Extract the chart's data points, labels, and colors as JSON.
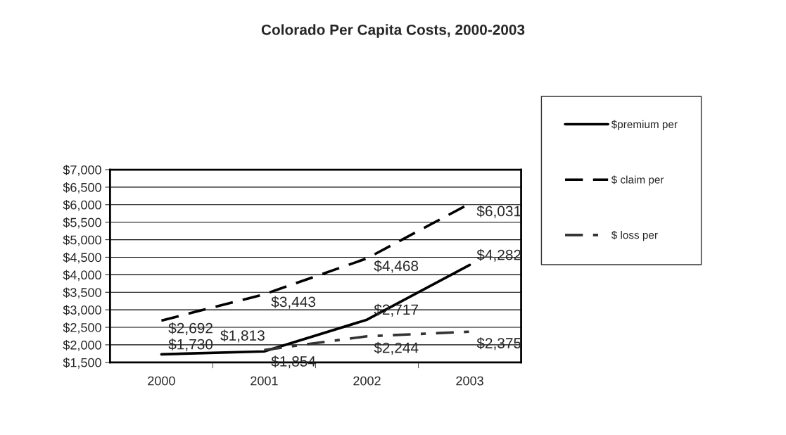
{
  "chart_data": {
    "type": "line",
    "title": "Colorado Per Capita Costs, 2000-2003",
    "categories": [
      "2000",
      "2001",
      "2002",
      "2003"
    ],
    "series": [
      {
        "name": "$premium per",
        "color": "#000000",
        "line_style": "solid",
        "values": [
          1730,
          1813,
          2717,
          4282
        ],
        "value_labels": [
          "$1,730",
          "$1,813",
          "$2,717",
          "$4,282"
        ]
      },
      {
        "name": "$ claim per",
        "color": "#000000",
        "line_style": "dashed",
        "values": [
          2692,
          3443,
          4468,
          6031
        ],
        "value_labels": [
          "$2,692",
          "$3,443",
          "$4,468",
          "$6,031"
        ]
      },
      {
        "name": "$ loss per",
        "color": "#333333",
        "line_style": "dotted",
        "values": [
          null,
          1854,
          2244,
          2375
        ],
        "value_labels": [
          null,
          "$1,854",
          "$2,244",
          "$2,375"
        ]
      }
    ],
    "ylim": [
      1500,
      7000
    ],
    "yticks": [
      {
        "value": 1500,
        "label": "$1,500"
      },
      {
        "value": 2000,
        "label": "$2,000"
      },
      {
        "value": 2500,
        "label": "$2,500"
      },
      {
        "value": 3000,
        "label": "$3,000"
      },
      {
        "value": 3500,
        "label": "$3,500"
      },
      {
        "value": 4000,
        "label": "$4,000"
      },
      {
        "value": 4500,
        "label": "$4,500"
      },
      {
        "value": 5000,
        "label": "$5,000"
      },
      {
        "value": 5500,
        "label": "$5,500"
      },
      {
        "value": 6000,
        "label": "$6,000"
      },
      {
        "value": 6500,
        "label": "$6,500"
      },
      {
        "value": 7000,
        "label": "$7,000"
      }
    ],
    "grid": "y",
    "legend": "right",
    "marker": "none"
  }
}
